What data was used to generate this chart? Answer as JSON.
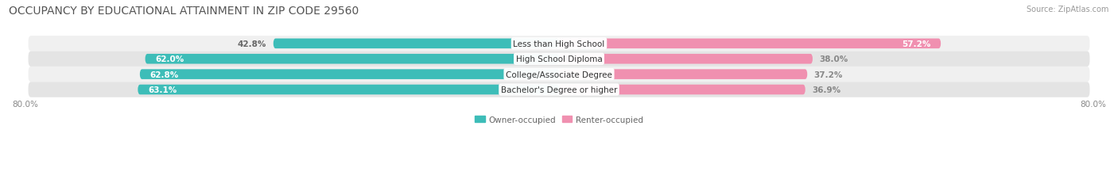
{
  "title": "OCCUPANCY BY EDUCATIONAL ATTAINMENT IN ZIP CODE 29560",
  "source": "Source: ZipAtlas.com",
  "categories": [
    "Less than High School",
    "High School Diploma",
    "College/Associate Degree",
    "Bachelor's Degree or higher"
  ],
  "owner_pct": [
    42.8,
    62.0,
    62.8,
    63.1
  ],
  "renter_pct": [
    57.2,
    38.0,
    37.2,
    36.9
  ],
  "owner_color": "#3DBDB8",
  "renter_color": "#F090B0",
  "row_bg_color_odd": "#F0F0F0",
  "row_bg_color_even": "#E4E4E4",
  "axis_min": 0,
  "axis_max": 160,
  "owner_label_color_inside": "#FFFFFF",
  "owner_label_color_outside": "#666666",
  "renter_label_color_inside": "#FFFFFF",
  "renter_label_color_outside": "#888888",
  "legend_owner": "Owner-occupied",
  "legend_renter": "Renter-occupied",
  "title_fontsize": 10,
  "source_fontsize": 7,
  "label_fontsize": 7.5,
  "bar_label_fontsize": 7.5,
  "category_fontsize": 7.5,
  "background_color": "#FFFFFF",
  "xlabels": [
    "80.0%",
    "80.0%"
  ],
  "owner_inside_threshold": 55.0,
  "renter_inside_threshold": 50.0
}
